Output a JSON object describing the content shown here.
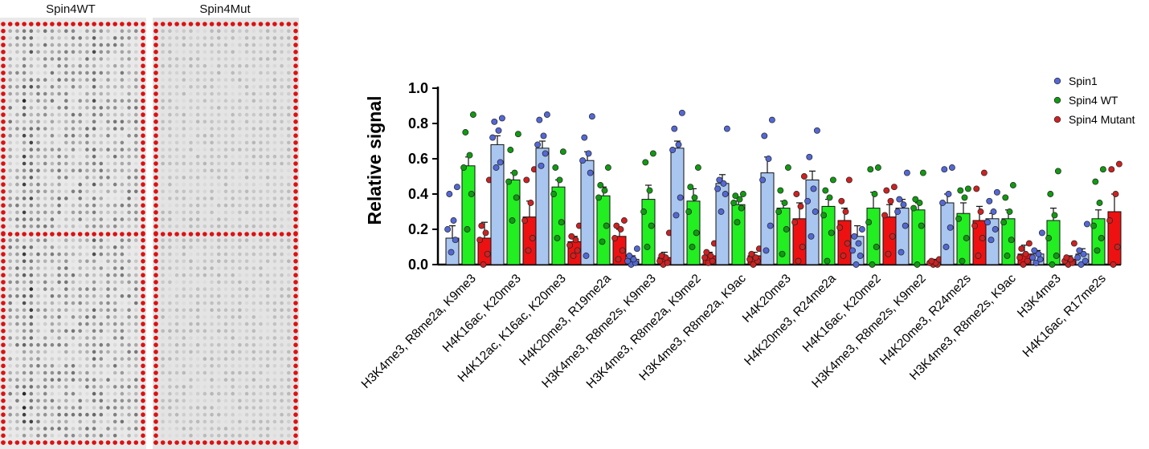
{
  "blots": {
    "wt_title": "Spin4WT",
    "mut_title": "Spin4Mut"
  },
  "chart_data": {
    "type": "bar",
    "ylabel": "Relative signal",
    "xlabel": "",
    "ylim": [
      0,
      1.0
    ],
    "yticks": [
      "0.0",
      "0.2",
      "0.4",
      "0.6",
      "0.8",
      "1.0"
    ],
    "grid": false,
    "legend_position": "top-right",
    "categories": [
      "H3K4me3, R8me2a, K9me3",
      "H4K16ac, K20me3",
      "H4K12ac, K16ac, K20me3",
      "H4K20me3, R19me2a",
      "H3K4me3, R8me2s, K9me3",
      "H3K4me3, R8me2a, K9me2",
      "H3K4me3, R8me2a, K9ac",
      "H4K20me3",
      "H4K20me3, R24me2a",
      "H4K16ac, K20me2",
      "H3K4me3, R8me2s, K9me2",
      "H4K20me3, R24me2s",
      "H3K4me3, R8me2s, K9ac",
      "H3K4me3",
      "H4K16ac, R17me2s"
    ],
    "series": [
      {
        "name": "Spin1",
        "color": "#a9c6f0",
        "dot_color": "#5468d4",
        "values": [
          0.15,
          0.68,
          0.66,
          0.59,
          0.03,
          0.66,
          0.46,
          0.52,
          0.48,
          0.16,
          0.32,
          0.35,
          0.26,
          0.06,
          0.06
        ],
        "errors": [
          0.07,
          0.05,
          0.04,
          0.05,
          0.02,
          0.04,
          0.05,
          0.09,
          0.05,
          0.06,
          0.05,
          0.05,
          0.03,
          0.02,
          0.03
        ],
        "points": [
          [
            0.07,
            0.14,
            0.2,
            0.25,
            0.4,
            0.44
          ],
          [
            0.55,
            0.58,
            0.72,
            0.76,
            0.81,
            0.83
          ],
          [
            0.56,
            0.63,
            0.68,
            0.73,
            0.82,
            0.85
          ],
          [
            0.05,
            0.52,
            0.59,
            0.63,
            0.72,
            0.84
          ],
          [
            0.0,
            0.01,
            0.02,
            0.03,
            0.05,
            0.09
          ],
          [
            0.28,
            0.38,
            0.65,
            0.68,
            0.77,
            0.86
          ],
          [
            0.3,
            0.4,
            0.43,
            0.46,
            0.48,
            0.77
          ],
          [
            0.08,
            0.22,
            0.48,
            0.6,
            0.73,
            0.82
          ],
          [
            0.16,
            0.3,
            0.36,
            0.43,
            0.61,
            0.76
          ],
          [
            0.0,
            0.05,
            0.08,
            0.12,
            0.16,
            0.2
          ],
          [
            0.07,
            0.22,
            0.3,
            0.34,
            0.37,
            0.52
          ],
          [
            0.1,
            0.21,
            0.35,
            0.4,
            0.54,
            0.55
          ],
          [
            0.14,
            0.2,
            0.24,
            0.3,
            0.36,
            0.41
          ],
          [
            0.01,
            0.03,
            0.04,
            0.06,
            0.08,
            0.18
          ],
          [
            0.0,
            0.02,
            0.04,
            0.06,
            0.08,
            0.23
          ]
        ]
      },
      {
        "name": "Spin4 WT",
        "color": "#22ee22",
        "dot_color": "#119911",
        "values": [
          0.56,
          0.48,
          0.44,
          0.39,
          0.37,
          0.36,
          0.34,
          0.32,
          0.33,
          0.32,
          0.31,
          0.29,
          0.26,
          0.25,
          0.26
        ],
        "errors": [
          0.05,
          0.04,
          0.04,
          0.05,
          0.08,
          0.07,
          0.02,
          0.04,
          0.04,
          0.09,
          0.04,
          0.06,
          0.05,
          0.07,
          0.05
        ],
        "points": [
          [
            0.2,
            0.4,
            0.55,
            0.62,
            0.75,
            0.85
          ],
          [
            0.25,
            0.38,
            0.47,
            0.52,
            0.65,
            0.74
          ],
          [
            0.15,
            0.24,
            0.4,
            0.48,
            0.55,
            0.64
          ],
          [
            0.13,
            0.22,
            0.38,
            0.42,
            0.45,
            0.55
          ],
          [
            0.1,
            0.22,
            0.3,
            0.42,
            0.58,
            0.63
          ],
          [
            0.1,
            0.18,
            0.3,
            0.38,
            0.44,
            0.55
          ],
          [
            0.24,
            0.32,
            0.35,
            0.37,
            0.39,
            0.4
          ],
          [
            0.06,
            0.2,
            0.3,
            0.35,
            0.42,
            0.55
          ],
          [
            0.02,
            0.18,
            0.28,
            0.38,
            0.42,
            0.48
          ],
          [
            0.0,
            0.1,
            0.24,
            0.4,
            0.54,
            0.55
          ],
          [
            0.0,
            0.22,
            0.32,
            0.35,
            0.37,
            0.52
          ],
          [
            0.02,
            0.15,
            0.26,
            0.38,
            0.42,
            0.43
          ],
          [
            0.05,
            0.14,
            0.24,
            0.3,
            0.38,
            0.45
          ],
          [
            0.0,
            0.05,
            0.15,
            0.28,
            0.4,
            0.53
          ],
          [
            0.08,
            0.15,
            0.22,
            0.35,
            0.47,
            0.54
          ]
        ]
      },
      {
        "name": "Spin4 Mutant",
        "color": "#ee1111",
        "dot_color": "#cc2222",
        "values": [
          0.15,
          0.27,
          0.13,
          0.16,
          0.04,
          0.05,
          0.05,
          0.26,
          0.25,
          0.27,
          0.01,
          0.25,
          0.06,
          0.03,
          0.3
        ],
        "errors": [
          0.09,
          0.09,
          0.03,
          0.04,
          0.03,
          0.02,
          0.02,
          0.09,
          0.07,
          0.07,
          0.02,
          0.08,
          0.05,
          0.02,
          0.1
        ],
        "points": [
          [
            0.0,
            0.06,
            0.14,
            0.18,
            0.22,
            0.48
          ],
          [
            0.08,
            0.15,
            0.25,
            0.35,
            0.48,
            0.54
          ],
          [
            0.05,
            0.08,
            0.11,
            0.14,
            0.16,
            0.22
          ],
          [
            0.03,
            0.08,
            0.15,
            0.2,
            0.22,
            0.25
          ],
          [
            0.0,
            0.01,
            0.02,
            0.04,
            0.05,
            0.18
          ],
          [
            0.01,
            0.02,
            0.04,
            0.05,
            0.07,
            0.12
          ],
          [
            0.0,
            0.02,
            0.03,
            0.04,
            0.06,
            0.09
          ],
          [
            0.02,
            0.1,
            0.24,
            0.33,
            0.4,
            0.5
          ],
          [
            0.05,
            0.12,
            0.21,
            0.3,
            0.36,
            0.48
          ],
          [
            0.06,
            0.16,
            0.28,
            0.36,
            0.42,
            0.44
          ],
          [
            0.0,
            0.0,
            0.01,
            0.01,
            0.02,
            0.03
          ],
          [
            0.05,
            0.15,
            0.22,
            0.3,
            0.43,
            0.52
          ],
          [
            0.0,
            0.02,
            0.04,
            0.06,
            0.09,
            0.12
          ],
          [
            0.0,
            0.01,
            0.02,
            0.03,
            0.04,
            0.12
          ],
          [
            0.0,
            0.1,
            0.25,
            0.4,
            0.54,
            0.57
          ]
        ]
      }
    ]
  }
}
